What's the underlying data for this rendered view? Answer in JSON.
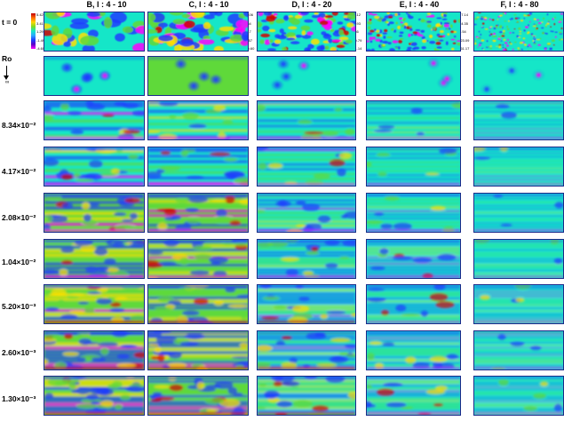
{
  "columns": [
    {
      "title": "B, l : 4 - 10",
      "colorbar": [
        "5.42",
        "3.41",
        "1.29",
        "-1.49",
        "-4.60"
      ]
    },
    {
      "title": "C, l : 4 - 10",
      "colorbar": [
        "4.56",
        "2.67",
        "-0.02",
        "-3.10",
        "-6.00"
      ]
    },
    {
      "title": "D, l : 4 - 20",
      "colorbar": [
        "14.06",
        "6.54",
        "2.17",
        "-5.57",
        "-10.60"
      ]
    },
    {
      "title": "E, l : 4 - 40",
      "colorbar": [
        "32.12",
        "19.93",
        "5.46",
        "-10.79",
        "-31.14"
      ]
    },
    {
      "title": "F, l : 4 - 80",
      "colorbar": [
        "57.14",
        "34.35",
        "9.54",
        "-23.09",
        "-61.17"
      ]
    }
  ],
  "rows": [
    {
      "label": "t = 0"
    },
    {
      "label": "Ro"
    },
    {
      "label": "8.34×10⁻²"
    },
    {
      "label": "4.17×10⁻²"
    },
    {
      "label": "2.08×10⁻²"
    },
    {
      "label": "1.04×10⁻²"
    },
    {
      "label": "5.20×10⁻³"
    },
    {
      "label": "2.60×10⁻³"
    },
    {
      "label": "1.30×10⁻³"
    }
  ],
  "ro_arrow_end": "∞",
  "colors": {
    "cyan": "#15e6c8",
    "blue": "#1e3cff",
    "green": "#5fd93a",
    "yellow": "#ffe000",
    "red": "#d40000",
    "magenta": "#ff00ff"
  }
}
